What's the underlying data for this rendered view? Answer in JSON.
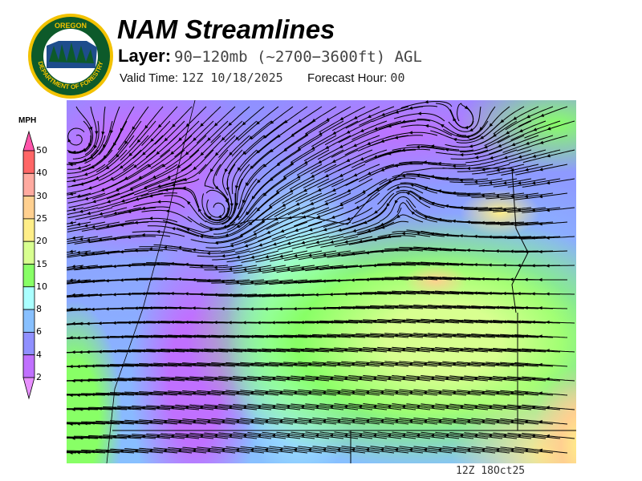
{
  "header": {
    "title": "NAM Streamlines",
    "layer_label": "Layer:",
    "layer_value": "90−120mb (~2700−3600ft) AGL",
    "valid_label": "Valid Time:",
    "valid_value": "12Z 10/18/2025",
    "forecast_label": "Forecast Hour:",
    "forecast_value": "00"
  },
  "logo": {
    "text_top": "OREGON",
    "text_bottom": "DEPARTMENT OF FORESTRY",
    "colors": {
      "ring": "#f2c200",
      "field": "#0d5a2a"
    }
  },
  "colorbar": {
    "unit": "MPH",
    "ticks": [
      "50",
      "40",
      "30",
      "25",
      "20",
      "15",
      "10",
      "8",
      "6",
      "4",
      "2"
    ],
    "colors": [
      "#ff55aa",
      "#ff6666",
      "#ffaaa0",
      "#ffd090",
      "#ffee88",
      "#d8ff90",
      "#88ff66",
      "#aaffff",
      "#88c0ff",
      "#9090ff",
      "#c070ff",
      "#e890ff"
    ]
  },
  "map": {
    "product": "streamlines",
    "field": "wind speed"
  },
  "footer": {
    "stamp": "12Z 18Oct25"
  }
}
